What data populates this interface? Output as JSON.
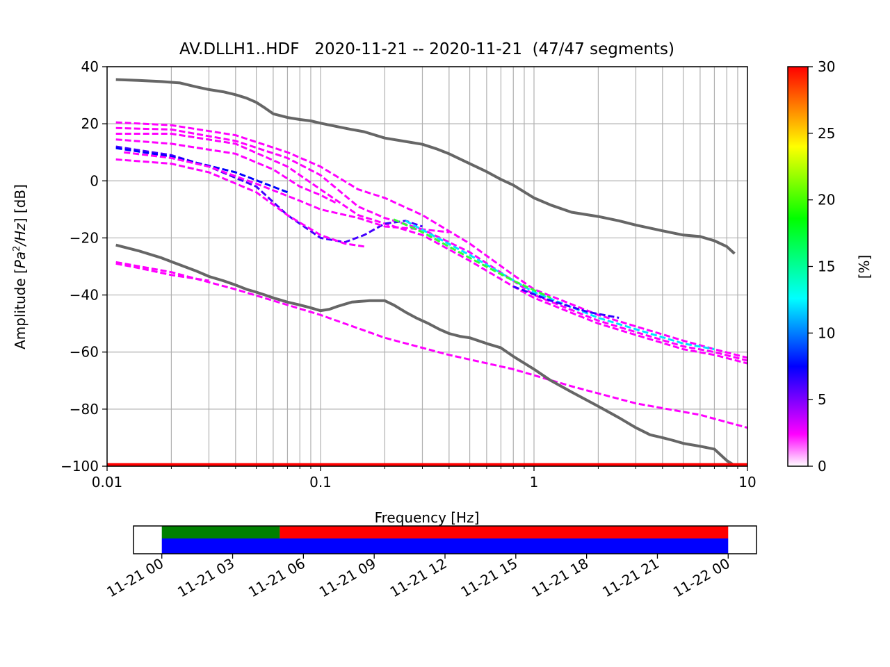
{
  "chart_data": [
    {
      "type": "heatmap",
      "title": "AV.DLLH1..HDF   2020-11-21 -- 2020-11-21  (47/47 segments)",
      "xlabel": "Frequency [Hz]",
      "ylabel_pre": "Amplitude [",
      "ylabel_math": "Pa",
      "ylabel_sup": "2",
      "ylabel_mid": "/",
      "ylabel_math2": "Hz",
      "ylabel_post": "] [dB]",
      "xscale": "log",
      "xlim": [
        0.01,
        10
      ],
      "ylim": [
        -100,
        40
      ],
      "grid": true,
      "x_ticks": [
        {
          "value": 0.01,
          "label": "0.01"
        },
        {
          "value": 0.1,
          "label": "0.1"
        },
        {
          "value": 1,
          "label": "1"
        },
        {
          "value": 10,
          "label": "10"
        }
      ],
      "y_ticks": [
        {
          "value": 40,
          "label": "40"
        },
        {
          "value": 20,
          "label": "20"
        },
        {
          "value": 0,
          "label": "0"
        },
        {
          "value": -20,
          "label": "−20"
        },
        {
          "value": -40,
          "label": "−40"
        },
        {
          "value": -60,
          "label": "−60"
        },
        {
          "value": -80,
          "label": "−80"
        },
        {
          "value": -100,
          "label": "−100"
        }
      ],
      "noise_models": [
        {
          "color": "#666666",
          "x": [
            0.011,
            0.014,
            0.018,
            0.022,
            0.026,
            0.03,
            0.035,
            0.04,
            0.045,
            0.05,
            0.055,
            0.06,
            0.07,
            0.08,
            0.09,
            0.1,
            0.12,
            0.14,
            0.16,
            0.2,
            0.25,
            0.3,
            0.35,
            0.4,
            0.5,
            0.6,
            0.7,
            0.8,
            1.0,
            1.2,
            1.5,
            2.0,
            2.5,
            3.0,
            4.0,
            5.0,
            6.0,
            7.0,
            8.0,
            8.7
          ],
          "y": [
            35.5,
            35.2,
            34.8,
            34.3,
            33,
            32,
            31.2,
            30.2,
            29,
            27.5,
            25.5,
            23.5,
            22.2,
            21.5,
            21,
            20.2,
            19,
            18,
            17.2,
            15,
            13.8,
            12.8,
            11.2,
            9.5,
            6,
            3.2,
            0.5,
            -1.5,
            -6,
            -8.5,
            -11,
            -12.5,
            -14,
            -15.5,
            -17.5,
            -19,
            -19.5,
            -21,
            -23,
            -25.5
          ]
        },
        {
          "color": "#666666",
          "x": [
            0.011,
            0.014,
            0.018,
            0.022,
            0.026,
            0.03,
            0.035,
            0.04,
            0.045,
            0.05,
            0.055,
            0.06,
            0.07,
            0.08,
            0.09,
            0.1,
            0.11,
            0.12,
            0.14,
            0.17,
            0.2,
            0.22,
            0.25,
            0.28,
            0.32,
            0.36,
            0.4,
            0.45,
            0.5,
            0.6,
            0.7,
            0.8,
            1.0,
            1.2,
            1.5,
            2.0,
            2.5,
            3.0,
            3.5,
            4.0,
            4.5,
            5.0,
            6.0,
            7.0,
            8.0,
            8.8
          ],
          "y": [
            -22.5,
            -24.5,
            -27,
            -29.5,
            -31.5,
            -33.5,
            -35,
            -36.5,
            -38,
            -39,
            -40,
            -41,
            -42.5,
            -43.5,
            -44.5,
            -45.5,
            -45,
            -44,
            -42.5,
            -42,
            -42,
            -43.5,
            -46,
            -48,
            -50,
            -52,
            -53.5,
            -54.5,
            -55,
            -57,
            -58.5,
            -61.5,
            -66,
            -70,
            -74,
            -79,
            -83,
            -86.5,
            -89,
            -90,
            -91,
            -92,
            -93,
            -94,
            -98,
            -100
          ]
        }
      ],
      "segment_lines": [
        {
          "color": "#ff00ff",
          "x": [
            0.011,
            0.02,
            0.04,
            0.07,
            0.1,
            0.15,
            0.2,
            0.3,
            0.5,
            0.8,
            1,
            2,
            3,
            5,
            7,
            10
          ],
          "y": [
            20.5,
            19.5,
            16,
            10,
            5,
            -3,
            -6,
            -12,
            -22,
            -33,
            -38,
            -47,
            -51,
            -56,
            -59,
            -62
          ]
        },
        {
          "color": "#ff00ff",
          "x": [
            0.011,
            0.02,
            0.04,
            0.07,
            0.1,
            0.15,
            0.2,
            0.3,
            0.5,
            0.8,
            1,
            2,
            3,
            5,
            7,
            10
          ],
          "y": [
            18.5,
            18,
            14,
            8,
            2,
            -9,
            -13,
            -17,
            -25,
            -35,
            -40,
            -49,
            -53,
            -58,
            -60,
            -63
          ]
        },
        {
          "color": "#ff00ff",
          "x": [
            0.011,
            0.02,
            0.04,
            0.07,
            0.1,
            0.15,
            0.2,
            0.3,
            0.5,
            0.8,
            1,
            2,
            3,
            5,
            7,
            10
          ],
          "y": [
            16.5,
            16.5,
            13,
            5,
            -3,
            -12,
            -15,
            -19,
            -28,
            -37,
            -41,
            -50,
            -54,
            -59,
            -61,
            -64
          ]
        },
        {
          "color": "#4400ff",
          "x": [
            0.011,
            0.02,
            0.03,
            0.05,
            0.07,
            0.1,
            0.13,
            0.16,
            0.2,
            0.25,
            0.3
          ],
          "y": [
            12,
            9,
            5,
            -2,
            -12,
            -20,
            -21.5,
            -19,
            -15,
            -14,
            -16
          ]
        },
        {
          "color": "#0000ff",
          "x": [
            0.011,
            0.02,
            0.04,
            0.07
          ],
          "y": [
            11.5,
            8.5,
            3,
            -4
          ]
        },
        {
          "color": "#ff00ff",
          "x": [
            0.011,
            0.02,
            0.04,
            0.06,
            0.08,
            0.1,
            0.12
          ],
          "y": [
            14.5,
            13,
            9.5,
            4,
            -2,
            -5,
            -8
          ]
        },
        {
          "color": "#ff00ff",
          "x": [
            0.011,
            0.02,
            0.03,
            0.05,
            0.07,
            0.1,
            0.13,
            0.16
          ],
          "y": [
            7.5,
            6,
            3,
            -4,
            -12,
            -19,
            -22,
            -23
          ]
        },
        {
          "color": "#ff00ff",
          "x": [
            0.012,
            0.02,
            0.03,
            0.05,
            0.08,
            0.1,
            0.15,
            0.2,
            0.3,
            0.4
          ],
          "y": [
            10,
            8,
            5,
            -1,
            -7,
            -10,
            -13,
            -16,
            -17,
            -18
          ]
        },
        {
          "color": "#ff00ff",
          "x": [
            0.011,
            0.02,
            0.04,
            0.1,
            0.2,
            0.4,
            0.8,
            1.5,
            3,
            6,
            10
          ],
          "y": [
            -28.5,
            -32,
            -38,
            -47,
            -55,
            -61,
            -66,
            -72,
            -78,
            -82,
            -86.5
          ]
        },
        {
          "color": "#ff00ff",
          "x": [
            0.011,
            0.014,
            0.02,
            0.03
          ],
          "y": [
            -29,
            -30.5,
            -33,
            -35
          ]
        },
        {
          "color": "#00e5ff",
          "x": [
            0.25,
            0.5,
            1,
            2,
            3,
            5,
            7
          ],
          "y": [
            -14,
            -26,
            -39,
            -48,
            -52,
            -57,
            -59
          ]
        },
        {
          "color": "#33ff33",
          "x": [
            0.22,
            0.3,
            0.5,
            0.8,
            1.2
          ],
          "y": [
            -13.5,
            -18,
            -27,
            -35,
            -41
          ]
        },
        {
          "color": "#3300ff",
          "x": [
            0.8,
            1.2,
            1.8,
            2.5
          ],
          "y": [
            -37,
            -42,
            -46,
            -48
          ]
        }
      ],
      "baseline": {
        "color": "#ff0000",
        "y": -100
      },
      "colorbar": {
        "label": "[%]",
        "range": [
          0,
          30
        ],
        "ticks": [
          {
            "value": 0,
            "label": "0"
          },
          {
            "value": 5,
            "label": "5"
          },
          {
            "value": 10,
            "label": "10"
          },
          {
            "value": 15,
            "label": "15"
          },
          {
            "value": 20,
            "label": "20"
          },
          {
            "value": 25,
            "label": "25"
          },
          {
            "value": 30,
            "label": "30"
          }
        ],
        "colors": [
          "#ffffff",
          "#ff00ff",
          "#0000ff",
          "#00ffff",
          "#00ff00",
          "#ffff00",
          "#ff0000"
        ]
      }
    },
    {
      "type": "timeline",
      "xlim": [
        "2020-11-20T22:48",
        "2020-11-22T01:12"
      ],
      "x_ticks": [
        {
          "value": "2020-11-21T00:00",
          "label": "11-21 00"
        },
        {
          "value": "2020-11-21T03:00",
          "label": "11-21 03"
        },
        {
          "value": "2020-11-21T06:00",
          "label": "11-21 06"
        },
        {
          "value": "2020-11-21T09:00",
          "label": "11-21 09"
        },
        {
          "value": "2020-11-21T12:00",
          "label": "11-21 12"
        },
        {
          "value": "2020-11-21T15:00",
          "label": "11-21 15"
        },
        {
          "value": "2020-11-21T18:00",
          "label": "11-21 18"
        },
        {
          "value": "2020-11-21T21:00",
          "label": "11-21 21"
        },
        {
          "value": "2020-11-22T00:00",
          "label": "11-22 00"
        }
      ],
      "bars": [
        {
          "row": "top",
          "start": "2020-11-21T00:00",
          "end": "2020-11-21T05:00",
          "color": "#008000"
        },
        {
          "row": "top",
          "start": "2020-11-21T05:00",
          "end": "2020-11-22T00:00",
          "color": "#ff0000"
        },
        {
          "row": "bottom",
          "start": "2020-11-21T00:00",
          "end": "2020-11-22T00:00",
          "color": "#0000ff"
        }
      ]
    }
  ]
}
